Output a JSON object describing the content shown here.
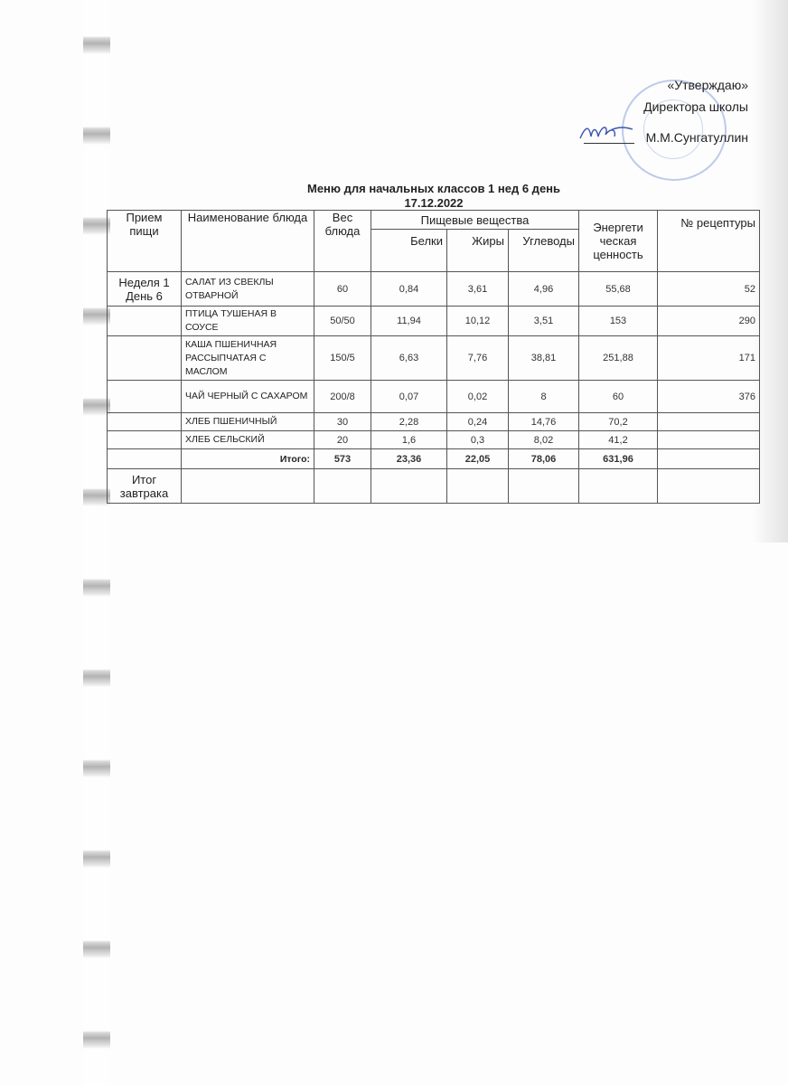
{
  "approval": {
    "line1": "«Утверждаю»",
    "line2": "Директора  школы",
    "signer": "М.М.Сунгатуллин"
  },
  "title": "Меню для начальных классов  1 нед 6 день",
  "date": "17.12.2022",
  "table": {
    "headers": {
      "meal": "Прием пищи",
      "dish": "Наименование блюда",
      "weight": "Вес блюда",
      "nutrients": "Пищевые вещества",
      "proteins": "Белки",
      "fats": "Жиры",
      "carbs": "Углеводы",
      "energy": "Энергети ческая ценность",
      "recipe": "№ рецептуры"
    },
    "meal_label": "Неделя 1 День 6",
    "rows": [
      {
        "dish": "САЛАТ ИЗ СВЕКЛЫ ОТВАРНОЙ",
        "weight": "60",
        "proteins": "0,84",
        "fats": "3,61",
        "carbs": "4,96",
        "energy": "55,68",
        "recipe": "52"
      },
      {
        "dish": "ПТИЦА ТУШЕНАЯ В СОУСЕ",
        "weight": "50/50",
        "proteins": "11,94",
        "fats": "10,12",
        "carbs": "3,51",
        "energy": "153",
        "recipe": "290"
      },
      {
        "dish": "КАША ПШЕНИЧНАЯ РАССЫПЧАТАЯ С МАСЛОМ",
        "weight": "150/5",
        "proteins": "6,63",
        "fats": "7,76",
        "carbs": "38,81",
        "energy": "251,88",
        "recipe": "171"
      },
      {
        "dish": "ЧАЙ ЧЕРНЫЙ С САХАРОМ",
        "weight": "200/8",
        "proteins": "0,07",
        "fats": "0,02",
        "carbs": "8",
        "energy": "60",
        "recipe": "376"
      },
      {
        "dish": "ХЛЕБ ПШЕНИЧНЫЙ",
        "weight": "30",
        "proteins": "2,28",
        "fats": "0,24",
        "carbs": "14,76",
        "energy": "70,2",
        "recipe": ""
      },
      {
        "dish": "ХЛЕБ СЕЛЬСКИЙ",
        "weight": "20",
        "proteins": "1,6",
        "fats": "0,3",
        "carbs": "8,02",
        "energy": "41,2",
        "recipe": ""
      }
    ],
    "total": {
      "label": "Итого:",
      "weight": "573",
      "proteins": "23,36",
      "fats": "22,05",
      "carbs": "78,06",
      "energy": "631,96"
    },
    "breakfast_total_label": "Итог завтрака"
  },
  "colors": {
    "stamp": "#6e8cd2",
    "signature": "#3a56b0"
  }
}
